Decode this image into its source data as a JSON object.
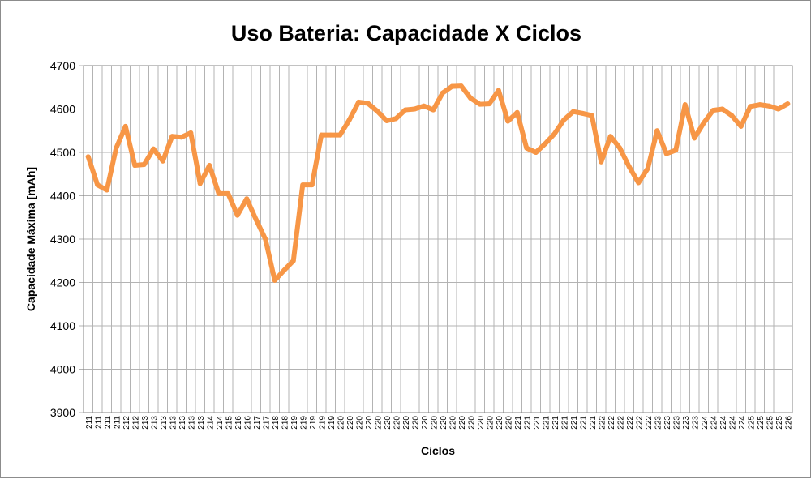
{
  "chart_data": {
    "type": "line",
    "title": "Uso Bateria: Capacidade X Ciclos",
    "xlabel": "Ciclos",
    "ylabel": "Capacidade Máxima [mAh]",
    "ylim": [
      3900,
      4700
    ],
    "yticks": [
      "3900",
      "4000",
      "4100",
      "4200",
      "4300",
      "4400",
      "4500",
      "4600",
      "4700"
    ],
    "grid": true,
    "legend": "none",
    "colors": {
      "line": "#F79646",
      "grid": "#b3b3b3",
      "axis": "#868686"
    },
    "x": [
      "211",
      "211",
      "211",
      "211",
      "212",
      "212",
      "213",
      "213",
      "213",
      "213",
      "213",
      "213",
      "213",
      "214",
      "214",
      "215",
      "216",
      "216",
      "217",
      "217",
      "218",
      "218",
      "219",
      "219",
      "219",
      "219",
      "219",
      "220",
      "220",
      "220",
      "220",
      "220",
      "220",
      "220",
      "220",
      "220",
      "220",
      "220",
      "220",
      "220",
      "220",
      "220",
      "220",
      "220",
      "220",
      "220",
      "221",
      "221",
      "221",
      "221",
      "221",
      "221",
      "221",
      "221",
      "221",
      "222",
      "222",
      "222",
      "222",
      "222",
      "222",
      "223",
      "223",
      "223",
      "223",
      "223",
      "224",
      "224",
      "224",
      "224",
      "224",
      "225",
      "225",
      "225",
      "225",
      "226"
    ],
    "series": [
      {
        "values": [
          4490,
          4425,
          4413,
          4510,
          4560,
          4470,
          4472,
          4508,
          4480,
          4537,
          4535,
          4545,
          4428,
          4470,
          4405,
          4405,
          4355,
          4393,
          4345,
          4300,
          4205,
          4228,
          4250,
          4425,
          4425,
          4540,
          4540,
          4540,
          4575,
          4616,
          4613,
          4595,
          4573,
          4578,
          4598,
          4600,
          4607,
          4598,
          4637,
          4652,
          4653,
          4625,
          4611,
          4612,
          4643,
          4572,
          4592,
          4510,
          4500,
          4520,
          4543,
          4575,
          4594,
          4590,
          4585,
          4478,
          4537,
          4510,
          4467,
          4430,
          4463,
          4550,
          4497,
          4505,
          4610,
          4533,
          4568,
          4597,
          4600,
          4585,
          4560,
          4606,
          4610,
          4607,
          4600,
          4612
        ]
      }
    ]
  }
}
